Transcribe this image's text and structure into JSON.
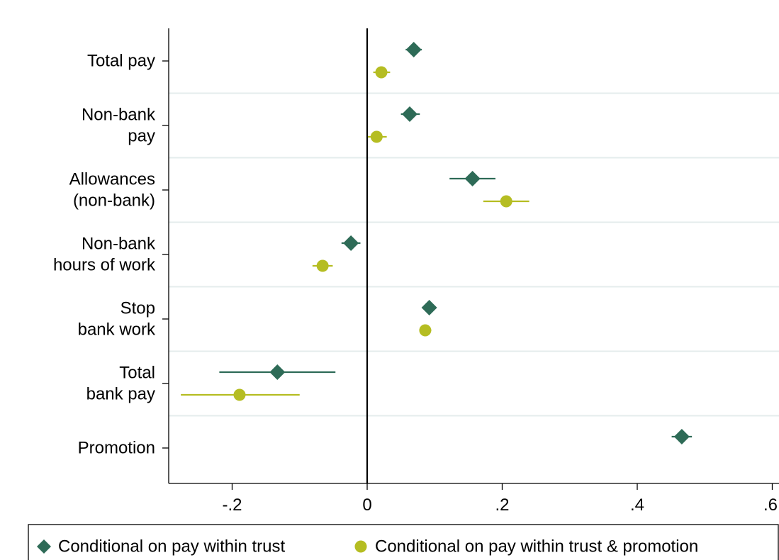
{
  "chart_data": {
    "type": "scatter",
    "subtype": "coefficient-plot",
    "orientation": "horizontal",
    "categories": [
      [
        "Total pay"
      ],
      [
        "Non-bank",
        "pay"
      ],
      [
        "Allowances",
        "(non-bank)"
      ],
      [
        "Non-bank",
        "hours of work"
      ],
      [
        "Stop",
        "bank work"
      ],
      [
        "Total",
        "bank pay"
      ],
      [
        "Promotion"
      ]
    ],
    "series": [
      {
        "name": "Conditional on pay within trust",
        "marker": "diamond",
        "color": "#2e6b57",
        "points": [
          {
            "estimate": 0.069,
            "ci_low": 0.057,
            "ci_high": 0.081
          },
          {
            "estimate": 0.063,
            "ci_low": 0.05,
            "ci_high": 0.078
          },
          {
            "estimate": 0.156,
            "ci_low": 0.122,
            "ci_high": 0.19
          },
          {
            "estimate": -0.024,
            "ci_low": -0.038,
            "ci_high": -0.01
          },
          {
            "estimate": 0.092,
            "ci_low": 0.085,
            "ci_high": 0.099
          },
          {
            "estimate": -0.133,
            "ci_low": -0.219,
            "ci_high": -0.047
          },
          {
            "estimate": 0.466,
            "ci_low": 0.451,
            "ci_high": 0.481
          }
        ]
      },
      {
        "name": "Conditional on pay within trust & promotion",
        "marker": "circle",
        "color": "#b5bd22",
        "points": [
          {
            "estimate": 0.021,
            "ci_low": 0.009,
            "ci_high": 0.034
          },
          {
            "estimate": 0.014,
            "ci_low": 0.001,
            "ci_high": 0.029
          },
          {
            "estimate": 0.206,
            "ci_low": 0.172,
            "ci_high": 0.24
          },
          {
            "estimate": -0.066,
            "ci_low": -0.081,
            "ci_high": -0.051
          },
          {
            "estimate": 0.086,
            "ci_low": 0.078,
            "ci_high": 0.095
          },
          {
            "estimate": -0.189,
            "ci_low": -0.276,
            "ci_high": -0.1
          },
          null
        ]
      }
    ],
    "xticks": [
      -0.2,
      0,
      0.2,
      0.4,
      0.6
    ],
    "xtick_labels": [
      "-.2",
      "0",
      ".2",
      ".4",
      ".6"
    ],
    "xlim": [
      -0.293,
      0.6
    ],
    "reference_line": 0,
    "grid": "horizontal lines between categories",
    "legend_position": "bottom"
  }
}
